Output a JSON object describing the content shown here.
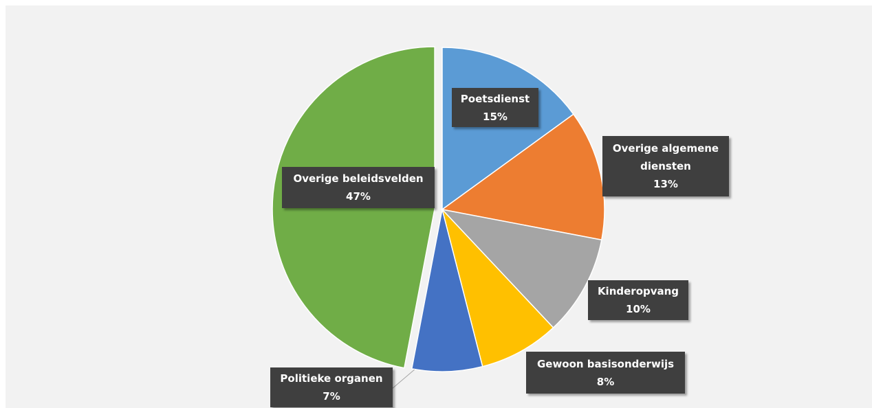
{
  "chart_data": {
    "type": "pie",
    "categories": [
      "Poetsdienst",
      "Overige algemene diensten",
      "Kinderopvang",
      "Gewoon basisonderwijs",
      "Politieke organen",
      "Overige beleidsvelden"
    ],
    "values": [
      15,
      13,
      10,
      8,
      7,
      47
    ],
    "value_labels": [
      "15%",
      "13%",
      "10%",
      "8%",
      "7%",
      "47%"
    ],
    "colors": [
      "#5b9bd5",
      "#ed7d31",
      "#a5a5a5",
      "#ffc000",
      "#4472c4",
      "#70ad47"
    ]
  }
}
